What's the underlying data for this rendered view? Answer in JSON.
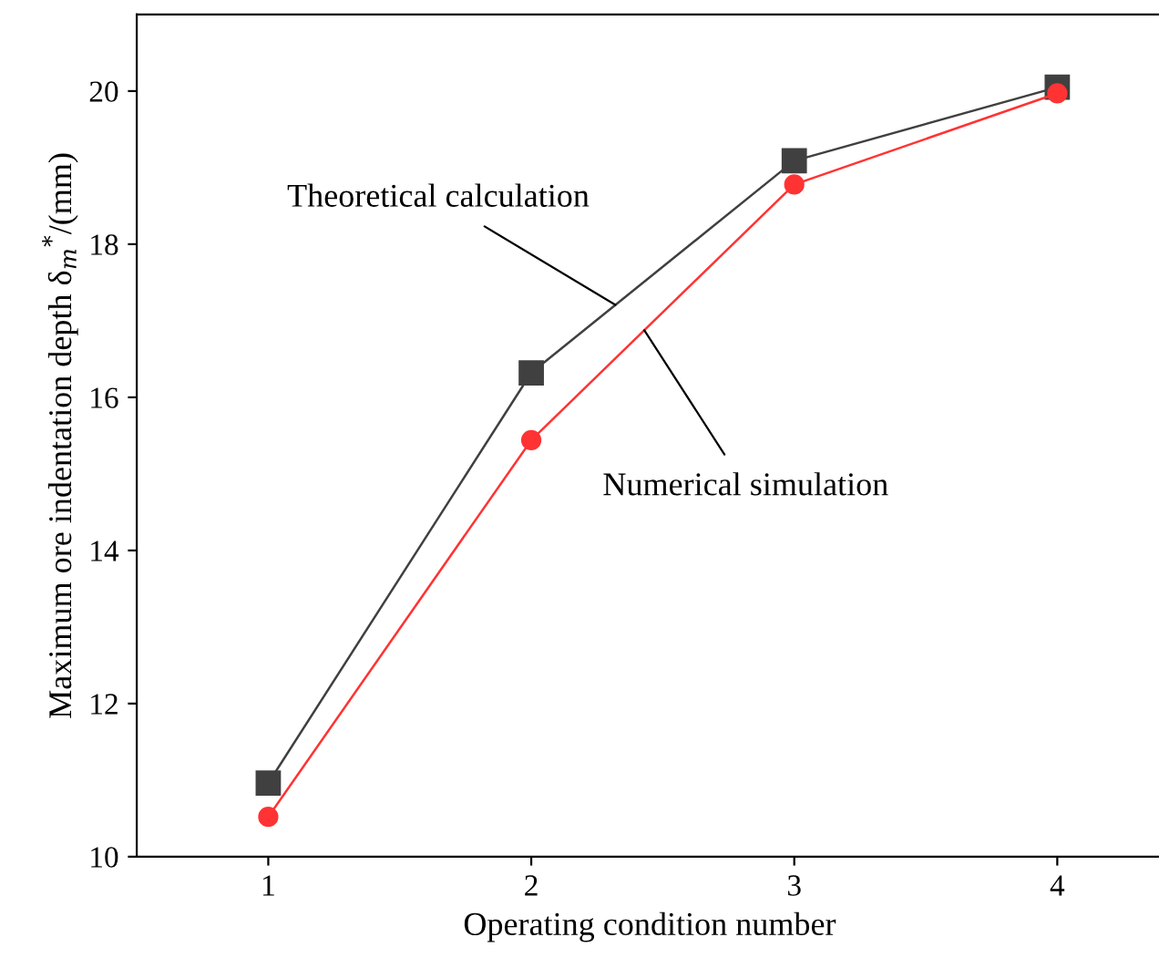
{
  "chart_data": {
    "type": "line",
    "xlabel": "Operating condition number",
    "ylabel": "Maximum ore indentation depth δ$_{m}$$^{*}$/(mm)",
    "x": [
      1,
      2,
      3,
      4
    ],
    "series": [
      {
        "name": "Theoretical calculation",
        "color": "#404040",
        "marker": "square",
        "values": [
          10.96,
          16.32,
          19.09,
          20.05
        ]
      },
      {
        "name": "Numerical simulation",
        "color": "#ff3333",
        "marker": "circle",
        "values": [
          10.52,
          15.44,
          18.78,
          19.97
        ]
      }
    ],
    "xlim": [
      0.5,
      4.4
    ],
    "ylim": [
      10,
      21
    ],
    "xticks": [
      1,
      2,
      3,
      4
    ],
    "yticks": [
      10,
      12,
      14,
      16,
      18,
      20
    ],
    "grid": false,
    "legend": false
  }
}
